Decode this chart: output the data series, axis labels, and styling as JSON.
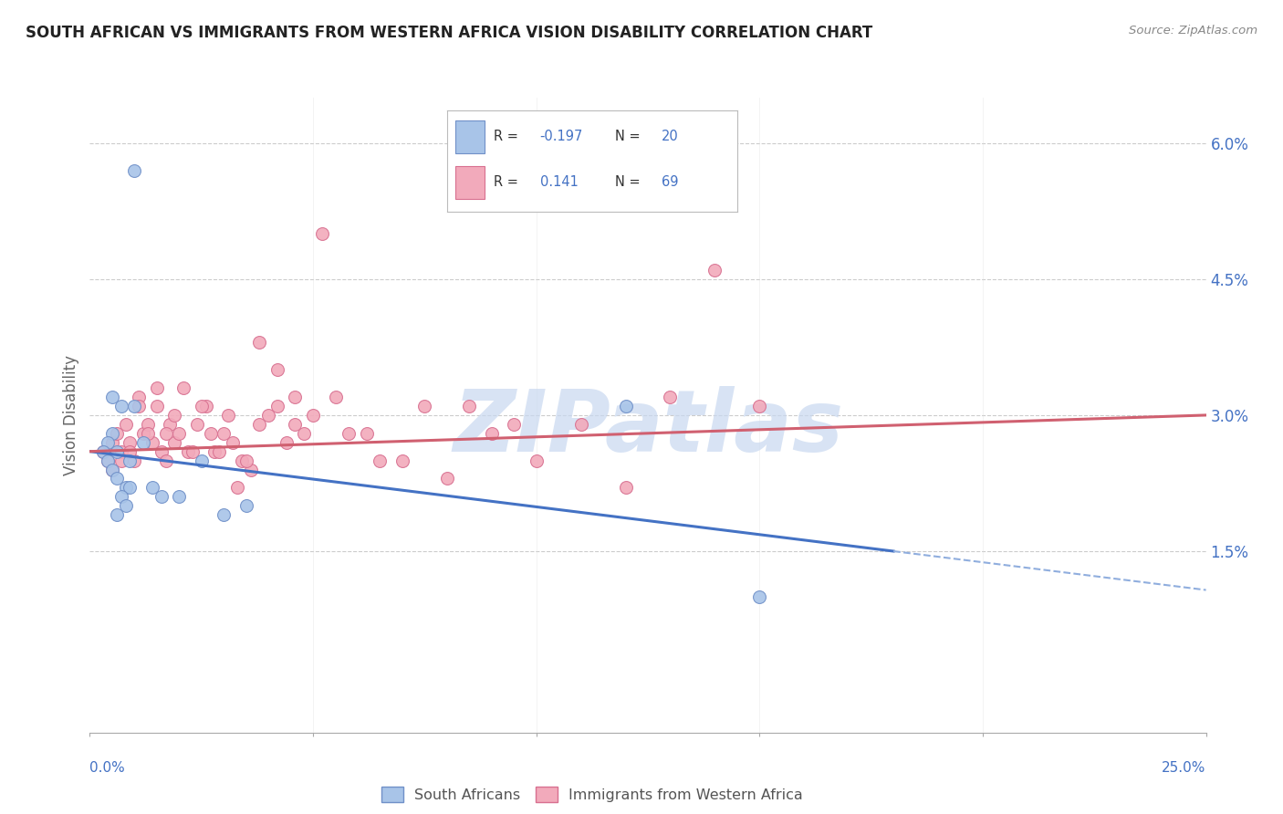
{
  "title": "SOUTH AFRICAN VS IMMIGRANTS FROM WESTERN AFRICA VISION DISABILITY CORRELATION CHART",
  "source": "Source: ZipAtlas.com",
  "ylabel": "Vision Disability",
  "yticks": [
    0.0,
    0.015,
    0.03,
    0.045,
    0.06
  ],
  "ytick_labels": [
    "",
    "1.5%",
    "3.0%",
    "4.5%",
    "6.0%"
  ],
  "xlim": [
    0.0,
    0.25
  ],
  "ylim": [
    -0.005,
    0.065
  ],
  "blue_color": "#A8C4E8",
  "pink_color": "#F2AABB",
  "blue_edge": "#7090C8",
  "pink_edge": "#D87090",
  "trend_blue": "#4472C4",
  "trend_pink": "#D06070",
  "dash_blue": "#90AEDE",
  "watermark_color": "#C8D8F0",
  "south_africans_x": [
    0.01,
    0.005,
    0.007,
    0.005,
    0.004,
    0.006,
    0.003,
    0.004,
    0.005,
    0.006,
    0.008,
    0.009,
    0.007,
    0.008,
    0.006,
    0.01,
    0.009,
    0.012,
    0.014,
    0.016,
    0.02,
    0.025,
    0.03,
    0.035,
    0.12,
    0.15
  ],
  "south_africans_y": [
    0.057,
    0.032,
    0.031,
    0.028,
    0.027,
    0.026,
    0.026,
    0.025,
    0.024,
    0.023,
    0.022,
    0.022,
    0.021,
    0.02,
    0.019,
    0.031,
    0.025,
    0.027,
    0.022,
    0.021,
    0.021,
    0.025,
    0.019,
    0.02,
    0.031,
    0.01
  ],
  "western_africa_x": [
    0.003,
    0.004,
    0.005,
    0.006,
    0.007,
    0.008,
    0.009,
    0.01,
    0.011,
    0.012,
    0.013,
    0.014,
    0.015,
    0.016,
    0.017,
    0.018,
    0.019,
    0.02,
    0.022,
    0.024,
    0.026,
    0.028,
    0.03,
    0.032,
    0.034,
    0.036,
    0.038,
    0.04,
    0.042,
    0.044,
    0.046,
    0.048,
    0.05,
    0.052,
    0.055,
    0.058,
    0.062,
    0.065,
    0.07,
    0.075,
    0.08,
    0.085,
    0.09,
    0.095,
    0.1,
    0.11,
    0.12,
    0.13,
    0.14,
    0.15,
    0.005,
    0.007,
    0.009,
    0.011,
    0.013,
    0.015,
    0.017,
    0.019,
    0.021,
    0.023,
    0.025,
    0.027,
    0.029,
    0.031,
    0.033,
    0.035,
    0.038,
    0.042,
    0.046
  ],
  "western_africa_y": [
    0.026,
    0.025,
    0.027,
    0.028,
    0.026,
    0.029,
    0.027,
    0.025,
    0.032,
    0.028,
    0.029,
    0.027,
    0.031,
    0.026,
    0.025,
    0.029,
    0.027,
    0.028,
    0.026,
    0.029,
    0.031,
    0.026,
    0.028,
    0.027,
    0.025,
    0.024,
    0.029,
    0.03,
    0.031,
    0.027,
    0.032,
    0.028,
    0.03,
    0.05,
    0.032,
    0.028,
    0.028,
    0.025,
    0.025,
    0.031,
    0.023,
    0.031,
    0.028,
    0.029,
    0.025,
    0.029,
    0.022,
    0.032,
    0.046,
    0.031,
    0.024,
    0.025,
    0.026,
    0.031,
    0.028,
    0.033,
    0.028,
    0.03,
    0.033,
    0.026,
    0.031,
    0.028,
    0.026,
    0.03,
    0.022,
    0.025,
    0.038,
    0.035,
    0.029
  ],
  "sa_trend_x0": 0.0,
  "sa_trend_y0": 0.026,
  "sa_trend_x1": 0.18,
  "sa_trend_y1": 0.015,
  "wa_trend_x0": 0.0,
  "wa_trend_y0": 0.026,
  "wa_trend_x1": 0.25,
  "wa_trend_y1": 0.03
}
